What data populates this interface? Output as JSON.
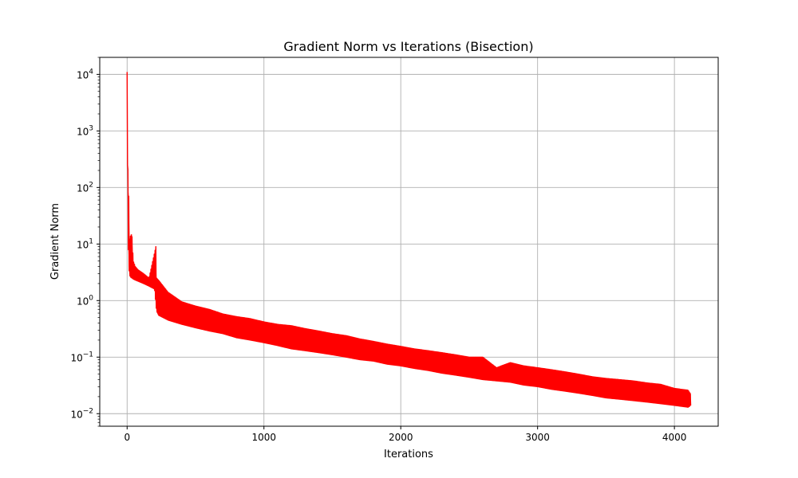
{
  "chart_data": {
    "type": "line",
    "title": "Gradient Norm vs Iterations (Bisection)",
    "xlabel": "Iterations",
    "ylabel": "Gradient Norm",
    "xlim": [
      -200,
      4320
    ],
    "ylim": [
      0.006,
      20000
    ],
    "yscale": "log",
    "grid": true,
    "color": "#ff0000",
    "x_ticks": [
      {
        "value": 0,
        "label": "0"
      },
      {
        "value": 1000,
        "label": "1000"
      },
      {
        "value": 2000,
        "label": "2000"
      },
      {
        "value": 3000,
        "label": "3000"
      },
      {
        "value": 4000,
        "label": "4000"
      }
    ],
    "y_ticks": [
      {
        "value": 0.01,
        "base": "10",
        "exp": "−2"
      },
      {
        "value": 0.1,
        "base": "10",
        "exp": "−1"
      },
      {
        "value": 1,
        "base": "10",
        "exp": "0"
      },
      {
        "value": 10,
        "base": "10",
        "exp": "1"
      },
      {
        "value": 100,
        "base": "10",
        "exp": "2"
      },
      {
        "value": 1000,
        "base": "10",
        "exp": "3"
      },
      {
        "value": 10000,
        "base": "10",
        "exp": "4"
      }
    ],
    "series": [
      {
        "upper_envelope": {
          "x": [
            0,
            2,
            5,
            8,
            12,
            18,
            25,
            35,
            45,
            60,
            80,
            120,
            160,
            210,
            215,
            230,
            300,
            400,
            500,
            600,
            700,
            800,
            900,
            1000,
            1100,
            1200,
            1300,
            1400,
            1500,
            1600,
            1700,
            1800,
            1900,
            2000,
            2100,
            2200,
            2300,
            2400,
            2500,
            2600,
            2700,
            2800,
            2900,
            3000,
            3100,
            3200,
            3300,
            3400,
            3500,
            3600,
            3700,
            3800,
            3900,
            4000,
            4100,
            4120
          ],
          "y": [
            11000,
            900,
            300,
            100,
            70,
            12,
            14,
            15,
            5,
            4,
            3.5,
            3,
            2.5,
            9,
            2.5,
            2.3,
            1.4,
            0.95,
            0.8,
            0.7,
            0.58,
            0.52,
            0.48,
            0.42,
            0.38,
            0.36,
            0.32,
            0.29,
            0.26,
            0.24,
            0.21,
            0.19,
            0.17,
            0.155,
            0.14,
            0.13,
            0.12,
            0.11,
            0.1,
            0.1,
            0.065,
            0.08,
            0.07,
            0.065,
            0.06,
            0.055,
            0.05,
            0.045,
            0.042,
            0.04,
            0.038,
            0.035,
            0.033,
            0.028,
            0.026,
            0.022
          ]
        },
        "lower_envelope": {
          "x": [
            0,
            2,
            5,
            8,
            12,
            18,
            25,
            35,
            45,
            60,
            80,
            120,
            160,
            200,
            215,
            230,
            300,
            400,
            500,
            600,
            700,
            800,
            900,
            1000,
            1100,
            1200,
            1300,
            1400,
            1500,
            1600,
            1700,
            1800,
            1900,
            2000,
            2100,
            2200,
            2300,
            2400,
            2500,
            2600,
            2700,
            2800,
            2900,
            3000,
            3100,
            3200,
            3300,
            3400,
            3500,
            3600,
            3700,
            3800,
            3900,
            4000,
            4100,
            4120
          ],
          "y": [
            700,
            500,
            60,
            10,
            4,
            2.8,
            2.6,
            2.5,
            2.4,
            2.3,
            2.2,
            2,
            1.8,
            1.6,
            0.65,
            0.55,
            0.45,
            0.38,
            0.33,
            0.29,
            0.26,
            0.22,
            0.2,
            0.18,
            0.16,
            0.14,
            0.13,
            0.12,
            0.11,
            0.1,
            0.09,
            0.085,
            0.075,
            0.07,
            0.063,
            0.058,
            0.052,
            0.048,
            0.044,
            0.04,
            0.038,
            0.036,
            0.032,
            0.03,
            0.027,
            0.025,
            0.023,
            0.021,
            0.019,
            0.018,
            0.017,
            0.016,
            0.015,
            0.014,
            0.013,
            0.014
          ]
        }
      }
    ]
  }
}
